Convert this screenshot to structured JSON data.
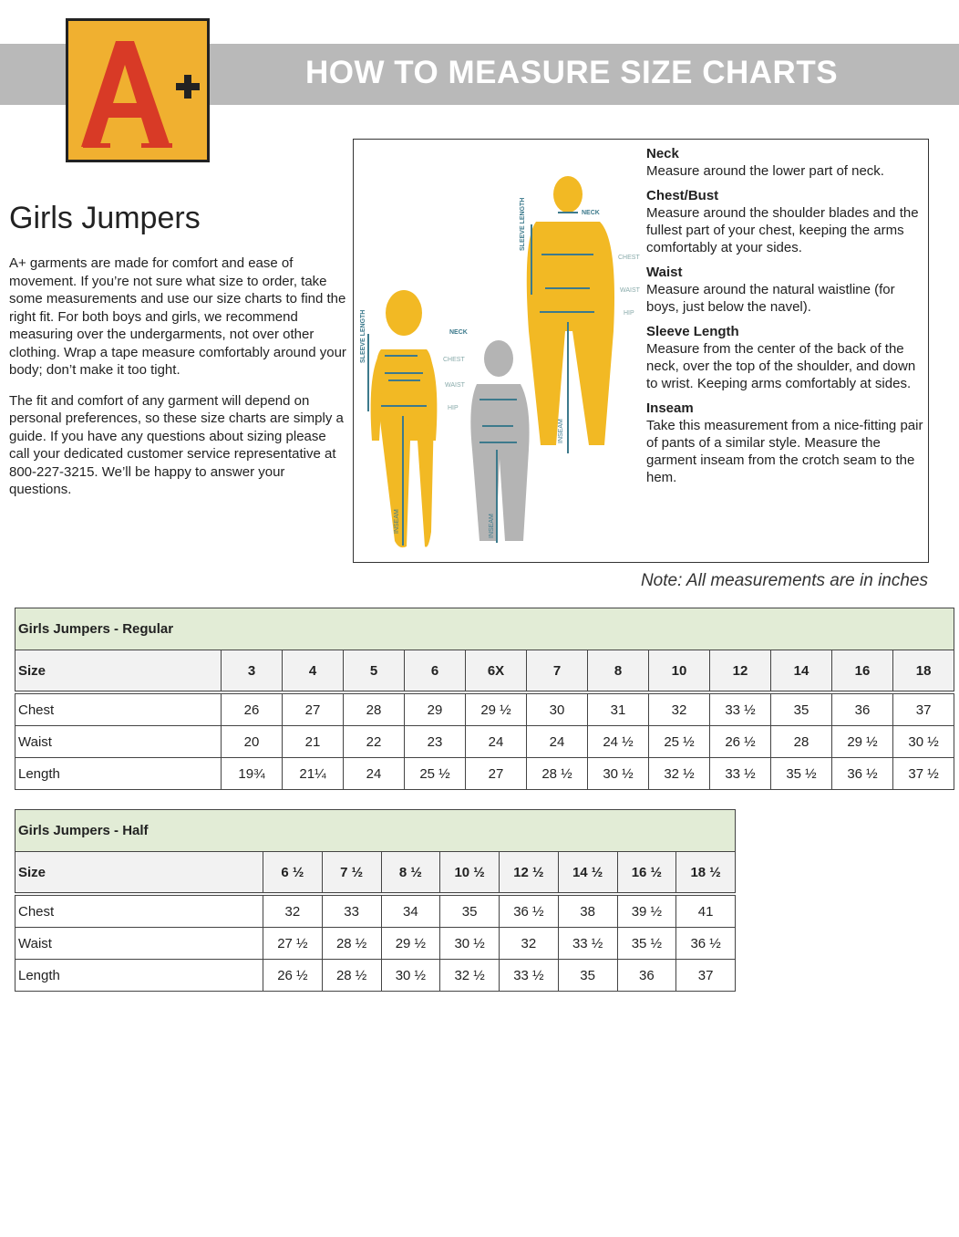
{
  "header": {
    "title": "HOW TO MEASURE SIZE CHARTS",
    "logo_text": "A+"
  },
  "page_title": "Girls Jumpers",
  "intro": [
    "A+ garments are made for comfort and ease of movement. If you’re not sure what size to order, take some measurements and use our size charts to find the right fit. For both boys and girls, we recommend measuring over the undergarments, not over other clothing. Wrap a tape measure comfortably around your body; don’t make it too tight.",
    "The fit and comfort of any garment will depend on personal preferences, so these size charts are simply a guide. If you have any questions about sizing please call your dedicated customer service representative at 800-227-3215. We’ll be happy to answer your questions."
  ],
  "figure_labels": {
    "neck": "NECK",
    "chest": "CHEST",
    "waist": "WAIST",
    "hip": "HIP",
    "sleeve": "SLEEVE LENGTH",
    "inseam": "INSEAM"
  },
  "colors": {
    "adult": "#f2b924",
    "child": "#b4b4b4",
    "measure_line": "#3d7a8c",
    "band": "#b9b9b9",
    "table_title_bg": "#e2ecd6"
  },
  "definitions": [
    {
      "term": "Neck",
      "text": "Measure around the lower part of neck."
    },
    {
      "term": "Chest/Bust",
      "text": "Measure around the shoulder blades and the fullest part of your chest, keeping the arms comfortably at your sides."
    },
    {
      "term": "Waist",
      "text": "Measure around the natural waistline (for boys, just below the navel)."
    },
    {
      "term": "Sleeve Length",
      "text": "Measure from the center of the back of the neck, over the top of the shoulder, and down to wrist. Keeping arms comfortably at sides."
    },
    {
      "term": "Inseam",
      "text": "Take this measurement from a nice-fitting pair of pants of a similar style. Measure the garment inseam from the crotch seam to the hem."
    }
  ],
  "note": "Note: All measurements are in inches",
  "tables": [
    {
      "title": "Girls Jumpers - Regular",
      "header": [
        "Size",
        "3",
        "4",
        "5",
        "6",
        "6X",
        "7",
        "8",
        "10",
        "12",
        "14",
        "16",
        "18"
      ],
      "rows": [
        [
          "Chest",
          "26",
          "27",
          "28",
          "29",
          "29 ½",
          "30",
          "31",
          "32",
          "33 ½",
          "35",
          "36",
          "37"
        ],
        [
          "Waist",
          "20",
          "21",
          "22",
          "23",
          "24",
          "24",
          "24 ½",
          "25 ½",
          "26 ½",
          "28",
          "29 ½",
          "30 ½"
        ],
        [
          "Length",
          "19¾",
          "21¼",
          "24",
          "25 ½",
          "27",
          "28 ½",
          "30 ½",
          "32 ½",
          "33 ½",
          "35 ½",
          "36 ½",
          "37 ½"
        ]
      ]
    },
    {
      "title": "Girls Jumpers - Half",
      "header": [
        "Size",
        "6 ½",
        "7 ½",
        "8 ½",
        "10 ½",
        "12 ½",
        "14 ½",
        "16 ½",
        "18 ½"
      ],
      "rows": [
        [
          "Chest",
          "32",
          "33",
          "34",
          "35",
          "36 ½",
          "38",
          "39 ½",
          "41"
        ],
        [
          "Waist",
          "27 ½",
          "28 ½",
          "29 ½",
          "30 ½",
          "32",
          "33 ½",
          "35 ½",
          "36 ½"
        ],
        [
          "Length",
          "26 ½",
          "28 ½",
          "30 ½",
          "32 ½",
          "33 ½",
          "35",
          "36",
          "37"
        ]
      ]
    }
  ]
}
